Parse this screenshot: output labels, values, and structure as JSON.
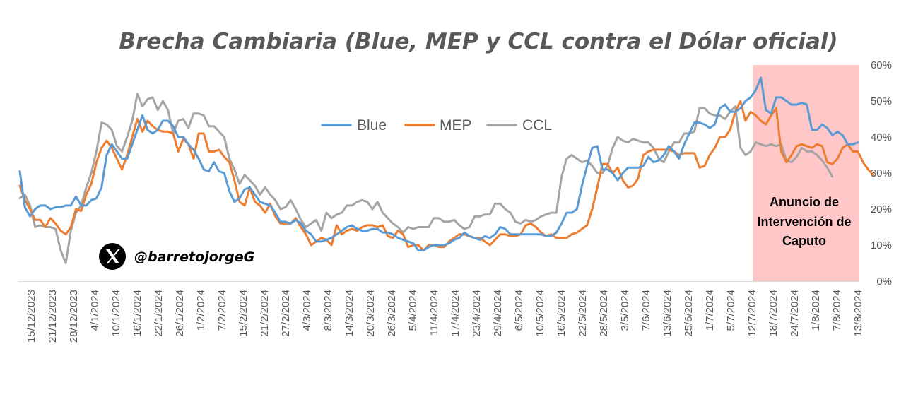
{
  "chart_data": {
    "type": "line",
    "title": "Brecha Cambiaria (Blue, MEP y CCL contra el Dólar oficial)",
    "xlabel": "",
    "ylabel": "",
    "y_axis_position": "right",
    "ylim": [
      0,
      60
    ],
    "y_ticks": [
      "0%",
      "10%",
      "20%",
      "30%",
      "40%",
      "50%",
      "60%"
    ],
    "legend_position": "top-center",
    "grid": false,
    "x_tick_labels": [
      "15/12/2023",
      "21/12/2023",
      "28/12/2023",
      "4/1/2024",
      "10/1/2024",
      "16/1/2024",
      "22/1/2024",
      "26/1/2024",
      "1/2/2024",
      "7/2/2024",
      "15/2/2024",
      "21/2/2024",
      "27/2/2024",
      "4/3/2024",
      "8/3/2024",
      "14/3/2024",
      "20/3/2024",
      "26/3/2024",
      "5/4/2024",
      "11/4/2024",
      "17/4/2024",
      "23/4/2024",
      "29/4/2024",
      "6/5/2024",
      "10/5/2024",
      "16/5/2024",
      "22/5/2024",
      "28/5/2024",
      "3/5/2024",
      "7/6/2024",
      "13/6/2024",
      "25/6/2024",
      "1/7/2024",
      "5/7/2024",
      "12/7/2024",
      "18/7/2024",
      "24/7/2024",
      "1/8/2024",
      "7/8/2024",
      "13/8/2024"
    ],
    "series": [
      {
        "name": "Blue",
        "color": "#5b9bd5",
        "values": [
          30.5,
          20.5,
          18,
          20,
          21,
          21,
          20,
          20.5,
          20.5,
          21,
          21,
          23.5,
          21,
          21,
          22.5,
          23,
          26,
          35,
          38,
          36,
          34,
          34,
          38,
          42,
          46,
          42,
          41,
          42,
          44.5,
          44.5,
          43,
          40,
          40,
          38,
          36.5,
          34,
          31,
          30.5,
          33,
          30.5,
          30,
          25,
          22,
          23,
          25.5,
          26,
          24,
          22,
          21.5,
          21,
          19,
          16.5,
          16.5,
          16,
          17,
          16,
          14,
          13,
          11,
          11,
          11.5,
          12,
          13,
          14,
          15,
          15.5,
          14.5,
          14,
          14,
          14.5,
          14.5,
          13.5,
          13.5,
          13,
          12,
          11.5,
          11,
          10.5,
          8.5,
          8.5,
          9.5,
          10,
          10,
          10,
          10.5,
          11.5,
          12,
          13.5,
          12.5,
          12,
          11.5,
          12.5,
          12,
          13,
          15,
          14.5,
          13,
          13,
          13,
          13,
          13,
          13,
          13,
          12.5,
          12.5,
          13.5,
          16,
          19,
          19,
          20,
          26.5,
          32,
          37,
          37.5,
          31,
          31,
          30,
          28,
          30,
          31.5,
          31.5,
          31.5,
          32,
          34.5,
          33,
          33.5,
          35,
          37.5,
          36,
          34,
          38,
          41,
          44,
          44,
          43.5,
          42.5,
          43.5,
          48,
          49,
          47,
          47,
          48,
          50,
          51,
          53,
          56.5,
          47.5,
          46.5,
          51,
          51,
          50,
          49,
          49,
          49.5,
          49,
          42,
          42,
          43.5,
          42.5,
          40.5,
          41.5,
          40.5,
          38,
          38,
          38.5
        ]
      },
      {
        "name": "MEP",
        "color": "#ed7d31",
        "values": [
          26.5,
          22.5,
          20,
          17,
          17,
          15,
          17.5,
          16,
          14,
          13,
          15,
          20,
          19.5,
          24,
          27,
          33,
          37,
          39,
          37,
          34,
          31,
          35,
          40,
          45,
          41.5,
          44.5,
          43,
          42,
          41.5,
          41.5,
          41,
          36,
          39.5,
          38,
          34,
          41,
          41,
          36,
          36,
          36.5,
          34.5,
          33,
          28,
          22,
          21,
          26,
          22,
          21,
          19,
          21.5,
          18,
          16,
          16,
          16,
          17.5,
          15,
          13,
          10,
          11,
          12,
          11.5,
          10,
          15.5,
          13,
          14,
          14.5,
          14,
          15,
          15.5,
          15.5,
          15,
          15.5,
          12.5,
          12,
          14,
          13,
          9.5,
          10,
          10,
          8.5,
          10,
          10,
          9.5,
          9.5,
          11,
          12,
          13,
          13,
          12.5,
          12,
          12,
          11,
          10,
          11.5,
          13,
          13,
          12.5,
          12.5,
          13,
          15.5,
          16,
          15,
          13.5,
          12.5,
          13,
          12,
          12,
          12,
          13,
          13.5,
          14.5,
          15.5,
          20,
          26,
          32.5,
          32.5,
          30,
          31.5,
          28,
          26,
          26.5,
          28.5,
          35,
          36,
          36.5,
          36.5,
          36.5,
          36.5,
          36,
          35,
          35.5,
          35.5,
          35.5,
          31.5,
          32,
          35,
          37,
          40,
          40,
          42,
          47,
          50,
          44.5,
          47,
          46,
          44.5,
          43.5,
          46,
          48,
          36,
          33,
          35,
          37.5,
          38,
          37.5,
          37,
          38,
          37.5,
          33,
          32.5,
          34,
          37,
          38,
          36,
          36,
          33,
          31,
          29.5
        ]
      },
      {
        "name": "CCL",
        "color": "#a5a5a5",
        "values": [
          23,
          24,
          21,
          15,
          15.5,
          15,
          15,
          14.5,
          8.5,
          5,
          14,
          19,
          21,
          26,
          30,
          36,
          44,
          43.5,
          42,
          37.5,
          36,
          40,
          44.5,
          52,
          48.5,
          50.5,
          51,
          47.5,
          50,
          47.5,
          41,
          44.5,
          45,
          42.5,
          46.5,
          46.5,
          46,
          43,
          43,
          41.5,
          40,
          34,
          31,
          27,
          29.5,
          28,
          26.5,
          24,
          26,
          24,
          22.5,
          20,
          20.5,
          22.5,
          20,
          17,
          15,
          16,
          17,
          14,
          19,
          17.5,
          18.5,
          19,
          21,
          21,
          22,
          22.5,
          22,
          20,
          22,
          19,
          17.5,
          16,
          15,
          13.5,
          15,
          14.5,
          15,
          15,
          15,
          17.5,
          17.5,
          16.5,
          16.5,
          17,
          15.5,
          14.5,
          15,
          18,
          18,
          18.5,
          18.5,
          21.5,
          21.5,
          20,
          19,
          16.5,
          16,
          17,
          16.5,
          17,
          18,
          18.5,
          19,
          19,
          29,
          34,
          35,
          34,
          33,
          33.5,
          32,
          30,
          30,
          32,
          37,
          40,
          39,
          38.5,
          39.5,
          39,
          38.5,
          38.5,
          37,
          34,
          33,
          36,
          38.5,
          38.5,
          41,
          41,
          41.5,
          48,
          48,
          46.5,
          46,
          46,
          45,
          47,
          48.5,
          37,
          35,
          36,
          38.5,
          38,
          37.5,
          38,
          37.5,
          38,
          33.5,
          33,
          34.5,
          37,
          36,
          36,
          35,
          33.5,
          31.5,
          29
        ]
      }
    ],
    "annotation": {
      "lines": [
        "Anuncio de",
        "Intervención de",
        "Caputo"
      ],
      "shaded_color": "#ffc7c7",
      "start_index": 144,
      "end_index": 165
    },
    "watermark": {
      "logo": "x-logo-icon",
      "handle": "@barretojorgeG"
    }
  }
}
